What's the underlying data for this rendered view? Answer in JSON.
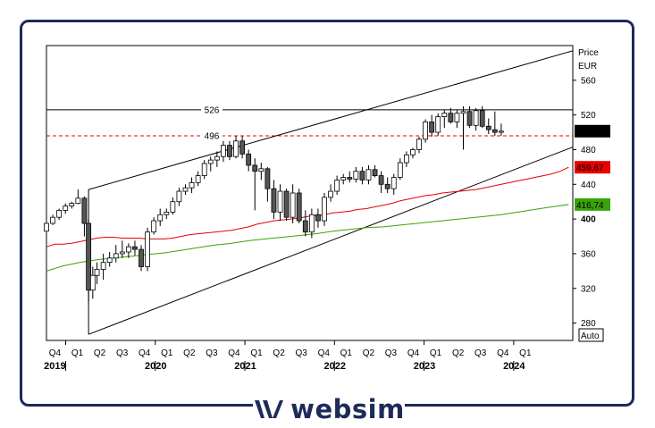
{
  "brand": {
    "name": "websim",
    "color": "#1d2a5a"
  },
  "chart_data": {
    "type": "candlestick",
    "axis_title": "Price",
    "currency": "EUR",
    "scale_mode": "Auto",
    "y_ticks": [
      280,
      320,
      360,
      400,
      440,
      480,
      520,
      560
    ],
    "y_bold_tick": 400,
    "x_quarters": [
      "Q4",
      "Q1",
      "Q2",
      "Q3",
      "Q4",
      "Q1",
      "Q2",
      "Q3",
      "Q4",
      "Q1",
      "Q2",
      "Q3",
      "Q4",
      "Q1",
      "Q2",
      "Q3",
      "Q4",
      "Q1",
      "Q2",
      "Q3",
      "Q4",
      "Q1"
    ],
    "years": [
      "2019",
      "2020",
      "2021",
      "2022",
      "2023",
      "2024"
    ],
    "horizontal_lines": [
      {
        "label": "526",
        "value": 526,
        "style": "solid",
        "color": "#000000",
        "label_color": "#e60000"
      },
      {
        "label": "496",
        "value": 496,
        "style": "dashed",
        "color": "#e60000",
        "label_color": "#e60000"
      }
    ],
    "value_tags": [
      {
        "label": "501,31",
        "value": 501.31,
        "bg": "#000000",
        "fg": "#ffffff",
        "bold": true
      },
      {
        "label": "459,67",
        "value": 459.67,
        "bg": "#e60000",
        "fg": "#ffffff",
        "bold": false
      },
      {
        "label": "416,74",
        "value": 416.74,
        "bg": "#3aa30a",
        "fg": "#ffffff",
        "bold": false
      }
    ],
    "series": [
      {
        "name": "MA red",
        "color": "#e60000",
        "x": [
          0,
          4,
          8,
          12,
          16,
          20,
          24,
          28,
          32,
          36,
          40,
          44,
          48,
          52,
          56,
          60,
          64,
          68,
          72,
          76,
          80,
          84,
          88,
          92,
          96,
          100,
          104,
          108,
          112,
          116,
          120,
          124,
          128,
          132,
          136,
          140,
          144,
          148,
          152,
          156,
          160,
          164,
          168,
          172,
          176,
          180,
          184,
          188,
          192,
          196,
          200,
          204,
          208,
          212,
          216,
          220,
          224,
          228,
          232,
          236,
          240,
          244,
          248
        ],
        "y": [
          368,
          371,
          371,
          372,
          374,
          376,
          378,
          379,
          379,
          378,
          378,
          378,
          377,
          377,
          377,
          378,
          380,
          382,
          383,
          384,
          385,
          386,
          387,
          389,
          391,
          394,
          396,
          398,
          399,
          400,
          401,
          403,
          404,
          405,
          407,
          408,
          409,
          411,
          412,
          414,
          416,
          418,
          421,
          423,
          425,
          427,
          428,
          430,
          431,
          432,
          433,
          434,
          436,
          438,
          440,
          442,
          444,
          446,
          448,
          450,
          452,
          455,
          459.67
        ]
      },
      {
        "name": "MA green",
        "color": "#3aa30a",
        "x": [
          0,
          8,
          16,
          24,
          32,
          40,
          48,
          56,
          64,
          72,
          80,
          88,
          96,
          104,
          112,
          120,
          128,
          136,
          144,
          152,
          160,
          168,
          176,
          184,
          192,
          200,
          208,
          216,
          224,
          232,
          240,
          248
        ],
        "y": [
          340,
          346,
          350,
          353,
          355,
          357,
          359,
          361,
          364,
          367,
          370,
          372,
          375,
          377,
          379,
          381,
          383,
          386,
          388,
          390,
          391,
          393,
          395,
          397,
          399,
          401,
          403,
          405,
          408,
          411,
          414,
          416.74
        ]
      }
    ],
    "trend_lines": [
      {
        "name": "upper channel",
        "x1": 20,
        "y1": 434,
        "x2": 250,
        "y2": 594
      },
      {
        "name": "lower channel",
        "x1": 20,
        "y1": 267,
        "x2": 250,
        "y2": 483
      },
      {
        "name": "low start vertical",
        "x1": 20,
        "y1": 267,
        "x2": 20,
        "y2": 434
      }
    ],
    "candles": [
      [
        0,
        386,
        400,
        384,
        395
      ],
      [
        3,
        395,
        405,
        393,
        402
      ],
      [
        6,
        402,
        412,
        399,
        410
      ],
      [
        9,
        410,
        418,
        406,
        415
      ],
      [
        12,
        415,
        420,
        412,
        418
      ],
      [
        15,
        418,
        434,
        417,
        424
      ],
      [
        18,
        424,
        426,
        380,
        395
      ],
      [
        20,
        395,
        400,
        305,
        318
      ],
      [
        22,
        318,
        345,
        308,
        335
      ],
      [
        24,
        335,
        350,
        325,
        342
      ],
      [
        27,
        342,
        360,
        330,
        350
      ],
      [
        30,
        350,
        362,
        345,
        355
      ],
      [
        33,
        355,
        370,
        350,
        360
      ],
      [
        36,
        360,
        375,
        355,
        362
      ],
      [
        39,
        362,
        372,
        355,
        368
      ],
      [
        42,
        368,
        375,
        358,
        365
      ],
      [
        45,
        365,
        370,
        340,
        345
      ],
      [
        48,
        345,
        390,
        340,
        385
      ],
      [
        51,
        385,
        402,
        382,
        398
      ],
      [
        54,
        398,
        412,
        392,
        405
      ],
      [
        57,
        405,
        412,
        400,
        408
      ],
      [
        60,
        408,
        425,
        405,
        420
      ],
      [
        63,
        420,
        436,
        415,
        432
      ],
      [
        66,
        432,
        440,
        428,
        436
      ],
      [
        69,
        436,
        448,
        430,
        442
      ],
      [
        72,
        442,
        455,
        438,
        450
      ],
      [
        75,
        450,
        468,
        446,
        464
      ],
      [
        78,
        464,
        472,
        455,
        468
      ],
      [
        81,
        468,
        478,
        460,
        472
      ],
      [
        84,
        472,
        490,
        466,
        485
      ],
      [
        87,
        485,
        490,
        468,
        472
      ],
      [
        90,
        472,
        496,
        470,
        490
      ],
      [
        93,
        490,
        496,
        470,
        475
      ],
      [
        96,
        475,
        480,
        455,
        462
      ],
      [
        99,
        462,
        470,
        410,
        455
      ],
      [
        102,
        455,
        465,
        445,
        458
      ],
      [
        105,
        458,
        460,
        420,
        435
      ],
      [
        108,
        435,
        445,
        400,
        408
      ],
      [
        111,
        408,
        440,
        398,
        432
      ],
      [
        114,
        432,
        435,
        398,
        402
      ],
      [
        117,
        402,
        440,
        395,
        430
      ],
      [
        120,
        430,
        435,
        395,
        398
      ],
      [
        123,
        398,
        410,
        380,
        385
      ],
      [
        126,
        385,
        412,
        378,
        405
      ],
      [
        129,
        405,
        412,
        390,
        398
      ],
      [
        132,
        398,
        430,
        392,
        425
      ],
      [
        135,
        425,
        440,
        420,
        432
      ],
      [
        138,
        432,
        450,
        428,
        445
      ],
      [
        141,
        445,
        452,
        440,
        448
      ],
      [
        144,
        448,
        455,
        442,
        446
      ],
      [
        147,
        446,
        460,
        442,
        455
      ],
      [
        150,
        455,
        460,
        440,
        445
      ],
      [
        153,
        445,
        462,
        440,
        457
      ],
      [
        156,
        457,
        462,
        448,
        450
      ],
      [
        159,
        450,
        455,
        430,
        440
      ],
      [
        162,
        440,
        448,
        430,
        435
      ],
      [
        165,
        435,
        452,
        428,
        448
      ],
      [
        168,
        448,
        470,
        445,
        465
      ],
      [
        171,
        465,
        478,
        460,
        474
      ],
      [
        174,
        474,
        482,
        470,
        480
      ],
      [
        177,
        480,
        495,
        476,
        492
      ],
      [
        180,
        492,
        515,
        488,
        512
      ],
      [
        183,
        512,
        520,
        495,
        500
      ],
      [
        186,
        500,
        522,
        496,
        518
      ],
      [
        189,
        518,
        526,
        505,
        522
      ],
      [
        192,
        522,
        528,
        510,
        512
      ],
      [
        195,
        512,
        526,
        505,
        522
      ],
      [
        198,
        522,
        530,
        480,
        524
      ],
      [
        201,
        524,
        530,
        505,
        508
      ],
      [
        204,
        508,
        528,
        502,
        525
      ],
      [
        207,
        525,
        530,
        505,
        507
      ],
      [
        210,
        507,
        516,
        498,
        503
      ],
      [
        213,
        503,
        524,
        496,
        500
      ],
      [
        216,
        500,
        510,
        496,
        501.31
      ]
    ]
  }
}
